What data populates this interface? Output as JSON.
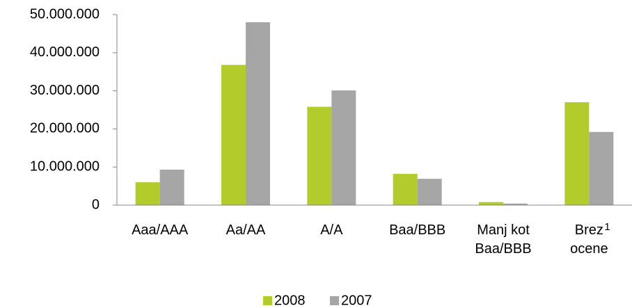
{
  "chart_data": {
    "type": "bar",
    "categories": [
      "Aaa/AAA",
      "Aa/AA",
      "A/A",
      "Baa/BBB",
      "Manj kot\nBaa/BBB",
      "Brez\nocene"
    ],
    "footnote_marker": "1",
    "series": [
      {
        "name": "2008",
        "color": "#b3cb2b",
        "values": [
          6000000,
          36800000,
          25800000,
          8200000,
          800000,
          27000000
        ]
      },
      {
        "name": "2007",
        "color": "#a6a6a6",
        "values": [
          9300000,
          48000000,
          30100000,
          6900000,
          400000,
          19200000
        ]
      }
    ],
    "ylim": [
      0,
      50000000
    ],
    "yticks": [
      0,
      {
        "value": 10000000,
        "label": "10.000.000"
      },
      {
        "value": 20000000,
        "label": "20.000.000"
      },
      {
        "value": 30000000,
        "label": "30.000.000"
      },
      {
        "value": 40000000,
        "label": "40.000.000"
      },
      {
        "value": 50000000,
        "label": "50.000.000"
      }
    ],
    "grid": false,
    "legend": "bottom"
  }
}
